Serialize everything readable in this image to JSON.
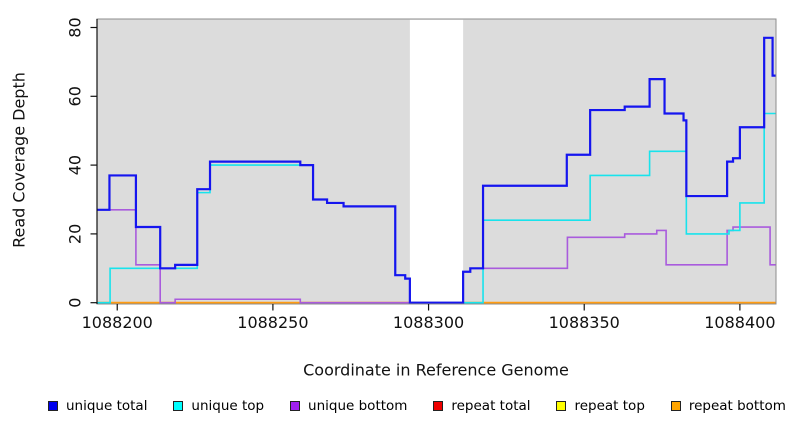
{
  "chart_data": {
    "type": "line",
    "subtype": "step-coverage-plot",
    "title": "",
    "xlabel": "Coordinate in Reference Genome",
    "ylabel": "Read Coverage Depth",
    "x_range": [
      1088193.5,
      1088411.6
    ],
    "y_range": [
      0,
      82.5
    ],
    "grid": "off",
    "plot_bg_color": "#DCDCDC",
    "border_color": "#8C8C8C",
    "axis_color": "#111111",
    "x_ticks": [
      {
        "value": 1088200,
        "label": "1088200"
      },
      {
        "value": 1088250,
        "label": "1088250"
      },
      {
        "value": 1088300,
        "label": "1088300"
      },
      {
        "value": 1088350,
        "label": "1088350"
      },
      {
        "value": 1088400,
        "label": "1088400"
      }
    ],
    "y_ticks": [
      {
        "value": 0,
        "label": "0"
      },
      {
        "value": 20,
        "label": "20"
      },
      {
        "value": 40,
        "label": "40"
      },
      {
        "value": 60,
        "label": "60"
      },
      {
        "value": 80,
        "label": "80"
      }
    ],
    "gap_region": {
      "x_start": 1088294,
      "x_end": 1088311.1,
      "color": "#FFFFFF"
    },
    "series": [
      {
        "id": "repeat-total",
        "label": "repeat total",
        "color": "#E01010",
        "width": 1.4,
        "points": [
          [
            1088193.5,
            0
          ],
          [
            1088411.6,
            0
          ]
        ]
      },
      {
        "id": "repeat-top",
        "label": "repeat top",
        "color": "#F0F010",
        "width": 1.4,
        "points": [
          [
            1088193.5,
            0
          ],
          [
            1088411.6,
            0
          ]
        ]
      },
      {
        "id": "repeat-bottom",
        "label": "repeat bottom",
        "color": "#FF9C12",
        "width": 1.8,
        "points": [
          [
            1088193.5,
            0
          ],
          [
            1088411.6,
            0
          ]
        ]
      },
      {
        "id": "unique-bottom",
        "label": "unique bottom",
        "color": "#A95BDD",
        "width": 1.6,
        "points": [
          [
            1088193.5,
            27
          ],
          [
            1088206,
            11
          ],
          [
            1088213.8,
            0
          ],
          [
            1088218.6,
            1
          ],
          [
            1088258.8,
            0
          ],
          [
            1088311.1,
            9
          ],
          [
            1088313.4,
            10
          ],
          [
            1088344.6,
            19
          ],
          [
            1088363,
            20
          ],
          [
            1088373.3,
            21
          ],
          [
            1088376.3,
            11
          ],
          [
            1088395.9,
            21
          ],
          [
            1088397.8,
            22
          ],
          [
            1088409.7,
            11
          ],
          [
            1088411.6,
            11
          ]
        ]
      },
      {
        "id": "unique-top",
        "label": "unique top",
        "color": "#18E3EC",
        "width": 1.6,
        "points": [
          [
            1088193.5,
            0
          ],
          [
            1088197.7,
            10
          ],
          [
            1088225.7,
            32
          ],
          [
            1088229.8,
            40
          ],
          [
            1088262.9,
            30
          ],
          [
            1088267.4,
            29
          ],
          [
            1088272.7,
            28
          ],
          [
            1088289.3,
            8
          ],
          [
            1088292.5,
            7
          ],
          [
            1088294,
            0
          ],
          [
            1088317.5,
            24
          ],
          [
            1088351.9,
            37
          ],
          [
            1088371,
            44
          ],
          [
            1088382.8,
            20
          ],
          [
            1088396.5,
            21
          ],
          [
            1088400,
            29
          ],
          [
            1088407.8,
            55
          ],
          [
            1088411.6,
            55
          ]
        ]
      },
      {
        "id": "unique-total",
        "label": "unique total",
        "color": "#1515EF",
        "width": 2.2,
        "points": [
          [
            1088193.5,
            27
          ],
          [
            1088197.5,
            37
          ],
          [
            1088206,
            22
          ],
          [
            1088213.8,
            10
          ],
          [
            1088218.6,
            11
          ],
          [
            1088225.7,
            33
          ],
          [
            1088229.8,
            41
          ],
          [
            1088258.8,
            40
          ],
          [
            1088262.9,
            30
          ],
          [
            1088267.4,
            29
          ],
          [
            1088272.7,
            28
          ],
          [
            1088289.3,
            8
          ],
          [
            1088292.5,
            7
          ],
          [
            1088294,
            0
          ],
          [
            1088311.1,
            9
          ],
          [
            1088313.4,
            10
          ],
          [
            1088317.5,
            34
          ],
          [
            1088344.4,
            43
          ],
          [
            1088351.9,
            56
          ],
          [
            1088363,
            57
          ],
          [
            1088371,
            65
          ],
          [
            1088375.8,
            55
          ],
          [
            1088381.9,
            53
          ],
          [
            1088382.8,
            31
          ],
          [
            1088395.9,
            41
          ],
          [
            1088397.8,
            42
          ],
          [
            1088400,
            51
          ],
          [
            1088407.8,
            77
          ],
          [
            1088410.5,
            66
          ],
          [
            1088411.6,
            66
          ]
        ]
      }
    ],
    "legend": {
      "position": "bottom",
      "items": [
        {
          "id": "unique-total",
          "label": "unique total",
          "color": "#0000EE"
        },
        {
          "id": "unique-top",
          "label": "unique top",
          "color": "#00FFFF"
        },
        {
          "id": "unique-bottom",
          "label": "unique bottom",
          "color": "#A020F0"
        },
        {
          "id": "repeat-total",
          "label": "repeat total",
          "color": "#EE0000"
        },
        {
          "id": "repeat-top",
          "label": "repeat top",
          "color": "#FFFF00"
        },
        {
          "id": "repeat-bottom",
          "label": "repeat bottom",
          "color": "#FFA500"
        }
      ]
    }
  }
}
